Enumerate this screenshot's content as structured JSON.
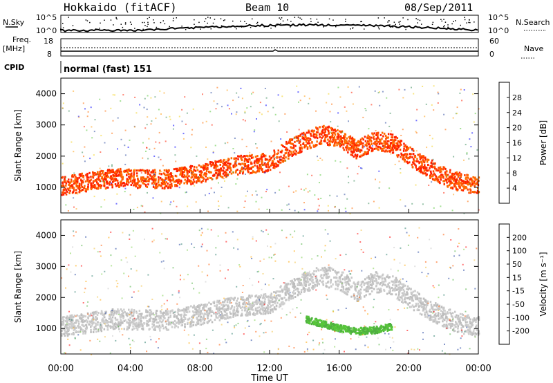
{
  "header": {
    "station": "Hokkaido (fitACF)",
    "beam": "Beam 10",
    "date": "08/Sep/2011"
  },
  "status_panels": {
    "nsky_label": "N.Sky",
    "nsky_ticks": [
      "10^5",
      "10^0"
    ],
    "nsearch_label": "N.Search",
    "freq_label": "Freq.",
    "freq_unit": "[MHz]",
    "freq_ticks": [
      "18",
      "8"
    ],
    "nave_label": "Nave",
    "nave_ticks": [
      "60",
      "0"
    ],
    "cpid_label": "CPID",
    "cpid_value": "normal (fast) 151"
  },
  "chart_data": [
    {
      "type": "heatmap",
      "name": "power",
      "ylabel": "Slant Range [km]",
      "ylim": [
        180,
        4500
      ],
      "yticks": [
        1000,
        2000,
        3000,
        4000
      ],
      "xlim": [
        0,
        24
      ],
      "colorbar_label": "Power [dB]",
      "colorbar_ticks": [
        "28",
        "24",
        "20",
        "16",
        "12",
        "8",
        "4"
      ],
      "colorbar_colors": [
        "#0000ff",
        "#2e4da0",
        "#3f8f5f",
        "#57c63a",
        "#f2cf1a",
        "#ff9e12",
        "#ff6a00",
        "#ff1f00"
      ],
      "bands": [
        {
          "t": [
            0,
            3,
            6,
            8,
            10,
            12,
            13,
            14,
            15,
            16,
            17,
            18,
            19,
            20,
            21,
            22,
            23,
            24
          ],
          "r": [
            1050,
            1300,
            1250,
            1450,
            1700,
            1800,
            2200,
            2500,
            2700,
            2550,
            2200,
            2500,
            2400,
            2000,
            1650,
            1350,
            1150,
            1050
          ],
          "width": 600,
          "colors": [
            "#ff1f00",
            "#ff4400",
            "#ff6a00"
          ]
        }
      ]
    },
    {
      "type": "heatmap",
      "name": "velocity",
      "ylabel": "Slant Range [km]",
      "ylim": [
        180,
        4500
      ],
      "yticks": [
        1000,
        2000,
        3000,
        4000
      ],
      "xlim": [
        0,
        24
      ],
      "xticks": [
        "00:00",
        "04:00",
        "08:00",
        "12:00",
        "16:00",
        "20:00",
        "00:00"
      ],
      "xlabel": "Time UT",
      "colorbar_label": "Velocity [m s⁻¹]",
      "colorbar_ticks": [
        "200",
        "100",
        "50",
        "15",
        "-15",
        "-50",
        "-100",
        "-200"
      ],
      "colorbar_colors": [
        "#ff0000",
        "#ff5a00",
        "#ffa500",
        "#f0c040",
        "#c8c8c8",
        "#7fd050",
        "#4fb040",
        "#2f7f70",
        "#1f3f9f"
      ],
      "bands": [
        {
          "t": [
            0,
            3,
            6,
            8,
            10,
            12,
            13,
            14,
            15,
            16,
            17,
            18,
            19,
            20,
            21,
            22,
            23,
            24
          ],
          "r": [
            1050,
            1300,
            1250,
            1450,
            1700,
            1800,
            2200,
            2500,
            2700,
            2550,
            2200,
            2500,
            2400,
            2000,
            1650,
            1350,
            1150,
            1050
          ],
          "width": 650,
          "colors": [
            "#c8c8c8",
            "#cfcfcf",
            "#bdbdbd"
          ]
        },
        {
          "t": [
            14,
            15,
            16,
            17,
            18,
            19
          ],
          "r": [
            1300,
            1150,
            1000,
            900,
            950,
            1050
          ],
          "width": 220,
          "colors": [
            "#57c63a",
            "#4fb040"
          ]
        }
      ]
    }
  ]
}
